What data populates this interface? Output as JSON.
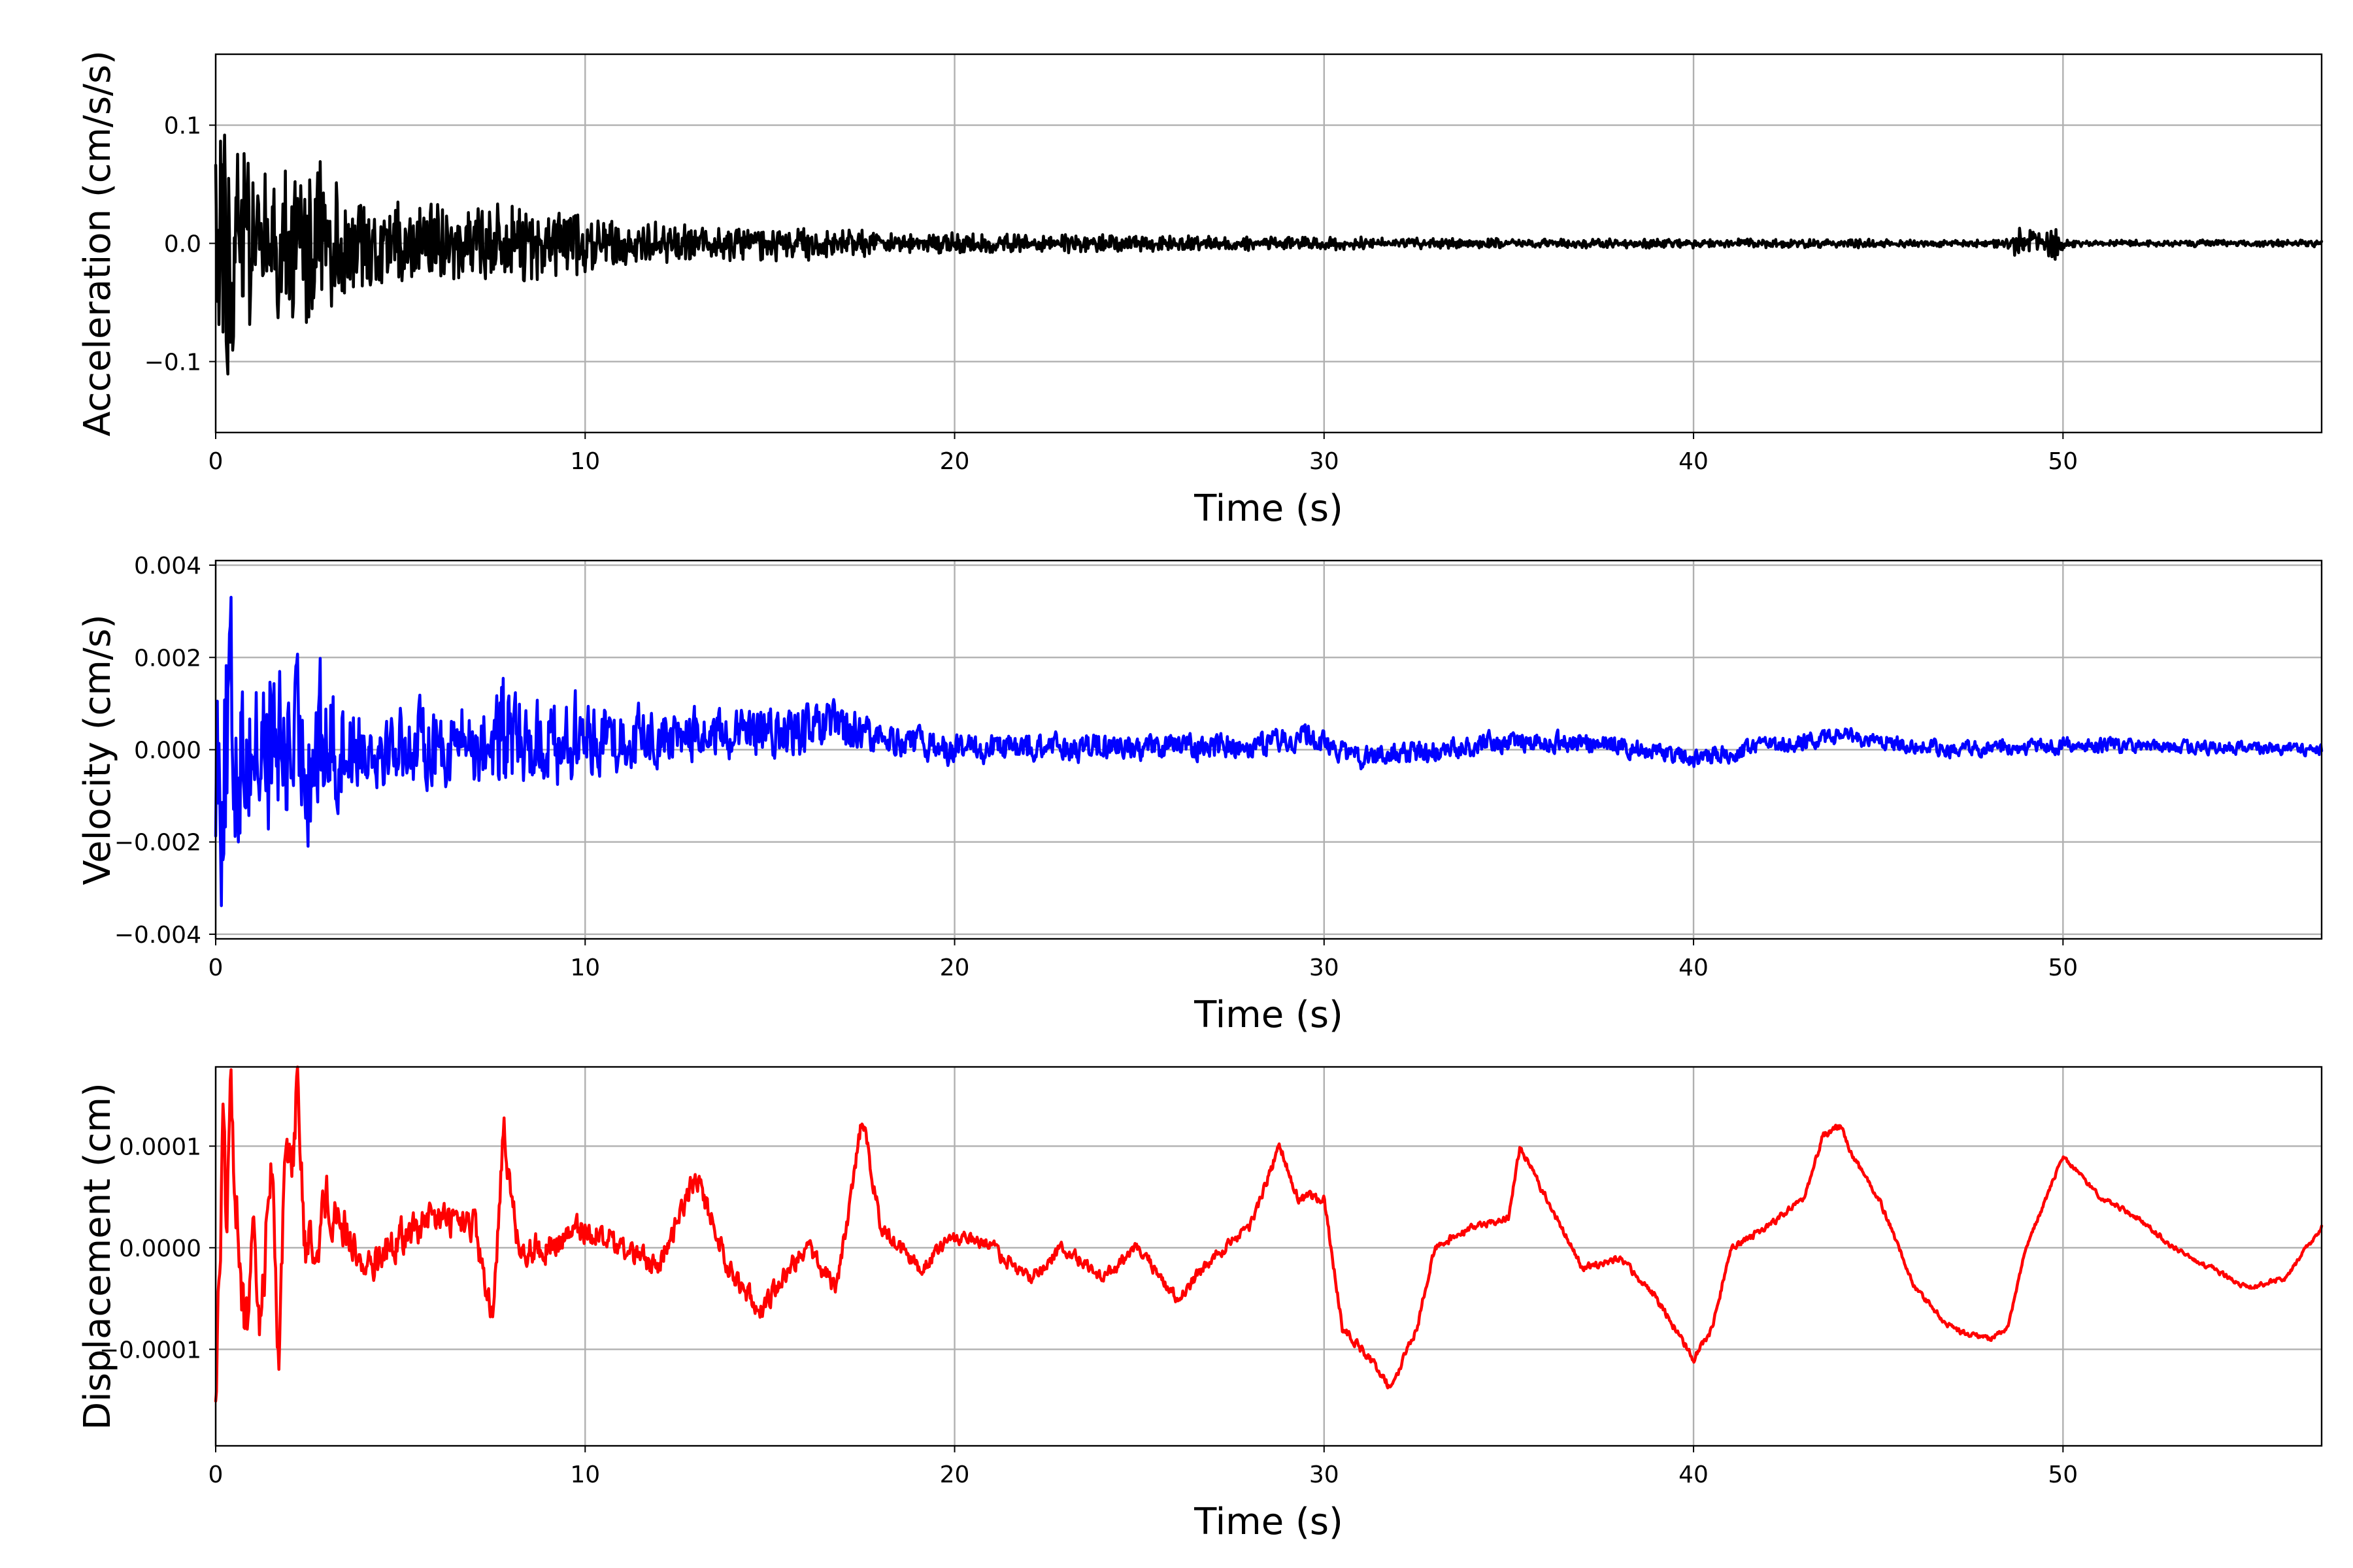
{
  "chart_data": [
    {
      "type": "line",
      "id": "acceleration",
      "ylabel": "Acceleration (cm/s/s)",
      "xlabel": "Time (s)",
      "xlim": [
        0,
        57
      ],
      "ylim": [
        -0.16,
        0.16
      ],
      "x_ticks": [
        0,
        10,
        20,
        30,
        40,
        50
      ],
      "x_tick_labels": [
        "0",
        "10",
        "20",
        "30",
        "40",
        "50"
      ],
      "y_ticks": [
        -0.1,
        0.0,
        0.1
      ],
      "y_tick_labels": [
        "−0.1",
        "0.0",
        "0.1"
      ],
      "grid": true,
      "color": "#000000",
      "series": [
        {
          "values": {
            "t": [
              0.0,
              0.1,
              0.2,
              0.3,
              0.4,
              0.5,
              0.6,
              0.8,
              1.0,
              1.3,
              1.6,
              2.0,
              2.3,
              2.6,
              2.7,
              2.8,
              3.0,
              3.3,
              3.6,
              4.0,
              4.5,
              5.0,
              5.5,
              6.0,
              7.0,
              8.0,
              9.0,
              9.5,
              10.0,
              11.0,
              12.0,
              13.0,
              14.0,
              15.0,
              16.0,
              17.0,
              18.0,
              20.0,
              22.0,
              24.0,
              26.0,
              28.0,
              30.0,
              33.0,
              36.0,
              40.0,
              44.0,
              47.0,
              48.5,
              48.8,
              49.0,
              49.5,
              49.8,
              50.0,
              50.5,
              52.0,
              55.0,
              57.0
            ],
            "amp": [
              0.1,
              0.1,
              0.145,
              0.145,
              0.12,
              0.1,
              0.09,
              0.08,
              0.075,
              0.07,
              0.07,
              0.07,
              0.075,
              0.08,
              0.1,
              0.08,
              0.075,
              0.07,
              0.05,
              0.04,
              0.035,
              0.035,
              0.03,
              0.04,
              0.035,
              0.035,
              0.03,
              0.035,
              0.025,
              0.022,
              0.02,
              0.018,
              0.016,
              0.016,
              0.015,
              0.013,
              0.01,
              0.009,
              0.008,
              0.008,
              0.007,
              0.006,
              0.006,
              0.005,
              0.004,
              0.004,
              0.004,
              0.003,
              0.004,
              0.015,
              0.012,
              0.01,
              0.015,
              0.006,
              0.003,
              0.003,
              0.003,
              0.003
            ]
          }
        }
      ]
    },
    {
      "type": "line",
      "id": "velocity",
      "ylabel": "Velocity (cm/s)",
      "xlabel": "Time (s)",
      "xlim": [
        0,
        57
      ],
      "ylim": [
        -0.0041,
        0.0041
      ],
      "x_ticks": [
        0,
        10,
        20,
        30,
        40,
        50
      ],
      "x_tick_labels": [
        "0",
        "10",
        "20",
        "30",
        "40",
        "50"
      ],
      "y_ticks": [
        -0.004,
        -0.002,
        0.0,
        0.002,
        0.004
      ],
      "y_tick_labels": [
        "−0.004",
        "−0.002",
        "0.000",
        "0.002",
        "0.004"
      ],
      "grid": true,
      "color": "#0000ff",
      "series": [
        {
          "values": {
            "t": [
              0.0,
              0.1,
              0.15,
              0.2,
              0.3,
              0.4,
              0.45,
              0.6,
              0.8,
              1.0,
              1.3,
              1.6,
              1.8,
              2.0,
              2.2,
              2.6,
              2.7,
              3.0,
              3.3,
              3.6,
              4.0,
              5.0,
              6.0,
              7.0,
              7.5,
              7.8,
              8.0,
              9.0,
              9.6,
              10.0,
              12.0,
              14.0,
              16.0,
              17.0,
              17.5,
              18.0,
              20.0,
              25.0,
              30.0,
              35.0,
              40.0,
              45.0,
              50.0,
              57.0
            ],
            "amp": [
              0.0028,
              0.003,
              0.0038,
              0.0036,
              0.0037,
              0.0036,
              0.0034,
              0.0025,
              0.002,
              0.0022,
              0.0023,
              0.0023,
              0.002,
              0.0023,
              0.002,
              0.0024,
              0.0024,
              0.0018,
              0.0018,
              0.0012,
              0.001,
              0.001,
              0.0011,
              0.0012,
              0.0012,
              0.002,
              0.0013,
              0.0011,
              0.0014,
              0.0009,
              0.0008,
              0.0006,
              0.0007,
              0.0008,
              0.0005,
              0.0004,
              0.0004,
              0.00035,
              0.0003,
              0.00028,
              0.00025,
              0.00022,
              0.0002,
              0.00015
            ],
            "trend_t": [
              0,
              17,
              20,
              28,
              29.5,
              31,
              35,
              38,
              40,
              43,
              44,
              47,
              50,
              57
            ],
            "trend_v": [
              0,
              0.0004,
              0.0,
              0.0001,
              0.0003,
              -0.0002,
              0.0002,
              0.0001,
              -0.0002,
              0.0002,
              0.0003,
              0.0,
              0.0001,
              0.0
            ]
          }
        }
      ]
    },
    {
      "type": "line",
      "id": "displacement",
      "ylabel": "Displacement (cm)",
      "xlabel": "Time (s)",
      "xlim": [
        0,
        57
      ],
      "ylim": [
        -0.000195,
        0.000178
      ],
      "x_ticks": [
        0,
        10,
        20,
        30,
        40,
        50
      ],
      "x_tick_labels": [
        "0",
        "10",
        "20",
        "30",
        "40",
        "50"
      ],
      "y_ticks": [
        -0.0001,
        0.0,
        0.0001
      ],
      "y_tick_labels": [
        "−0.0001",
        "0.0000",
        "0.0001"
      ],
      "grid": true,
      "color": "#ff0000",
      "series": [
        {
          "values": {
            "t": [
              0.0,
              0.1,
              0.2,
              0.3,
              0.4,
              0.6,
              0.8,
              1.0,
              1.2,
              1.5,
              1.7,
              1.9,
              2.1,
              2.2,
              2.4,
              2.7,
              3.0,
              3.5,
              4.0,
              5.0,
              6.0,
              7.0,
              7.5,
              7.8,
              7.9,
              8.2,
              9.0,
              10.0,
              11.0,
              12.0,
              12.5,
              13.0,
              13.5,
              14.0,
              14.8,
              15.5,
              16.0,
              16.8,
              17.2,
              17.5,
              18.0,
              19.0,
              20.0,
              21.0,
              22.0,
              23.0,
              24.0,
              25.0,
              26.0,
              27.0,
              28.0,
              28.8,
              29.3,
              30.0,
              30.5,
              31.0,
              31.5,
              31.8,
              32.5,
              33.0,
              34.0,
              35.0,
              35.3,
              36.0,
              37.0,
              38.0,
              39.0,
              40.0,
              40.5,
              41.0,
              42.0,
              43.0,
              43.5,
              44.0,
              44.3,
              45.0,
              46.0,
              47.0,
              48.0,
              48.5,
              49.0,
              50.0,
              51.0,
              52.0,
              53.0,
              54.0,
              55.0,
              56.0,
              57.0
            ],
            "trend": [
              -0.00014,
              -3e-05,
              0.00012,
              0.0,
              0.00014,
              3e-05,
              -0.0001,
              0.0,
              -8e-05,
              9e-05,
              -0.0001,
              0.0001,
              0.0001,
              0.00017,
              0.0,
              0.0,
              5e-05,
              2e-05,
              -2e-05,
              1e-05,
              3e-05,
              2e-05,
              -8e-05,
              0.00013,
              8e-05,
              0.0,
              0.0,
              2e-05,
              0.0,
              -2e-05,
              3e-05,
              7e-05,
              2e-05,
              -3e-05,
              -6e-05,
              -2e-05,
              0.0,
              -4e-05,
              5e-05,
              0.00013,
              2e-05,
              -2e-05,
              1e-05,
              0.0,
              -3e-05,
              0.0,
              -3e-05,
              0.0,
              -5e-05,
              -1e-05,
              2e-05,
              0.0001,
              5e-05,
              5e-05,
              -8e-05,
              -0.0001,
              -0.00012,
              -0.00014,
              -8e-05,
              0.0,
              2e-05,
              3e-05,
              0.0001,
              5e-05,
              -2e-05,
              -1e-05,
              -5e-05,
              -0.00011,
              -8e-05,
              0.0,
              2e-05,
              5e-05,
              0.00011,
              0.00012,
              9e-05,
              5e-05,
              -4e-05,
              -8e-05,
              -9e-05,
              -8e-05,
              0.0,
              9e-05,
              5e-05,
              3e-05,
              0.0,
              -2e-05,
              -4e-05,
              -3e-05,
              2e-05
            ],
            "noise_t": [
              0,
              2,
              4,
              8,
              12,
              16,
              20,
              25,
              30,
              35,
              40,
              45,
              50,
              57
            ],
            "noise_a": [
              6e-05,
              5e-05,
              3e-05,
              2.5e-05,
              2e-05,
              1.5e-05,
              1.2e-05,
              1e-05,
              8e-06,
              6e-06,
              6e-06,
              5e-06,
              4e-06,
              4e-06
            ]
          }
        }
      ]
    }
  ]
}
